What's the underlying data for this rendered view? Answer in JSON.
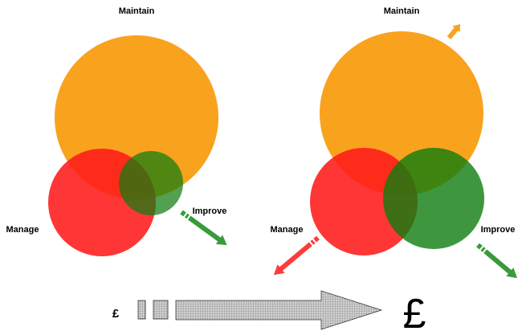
{
  "left": {
    "top_label": "Maintain",
    "left_label": "Manage",
    "right_label": "Improve"
  },
  "right": {
    "top_label": "Maintain",
    "left_label": "Manage",
    "right_label": "Improve"
  },
  "cost": {
    "low": "£",
    "high": "£"
  }
}
